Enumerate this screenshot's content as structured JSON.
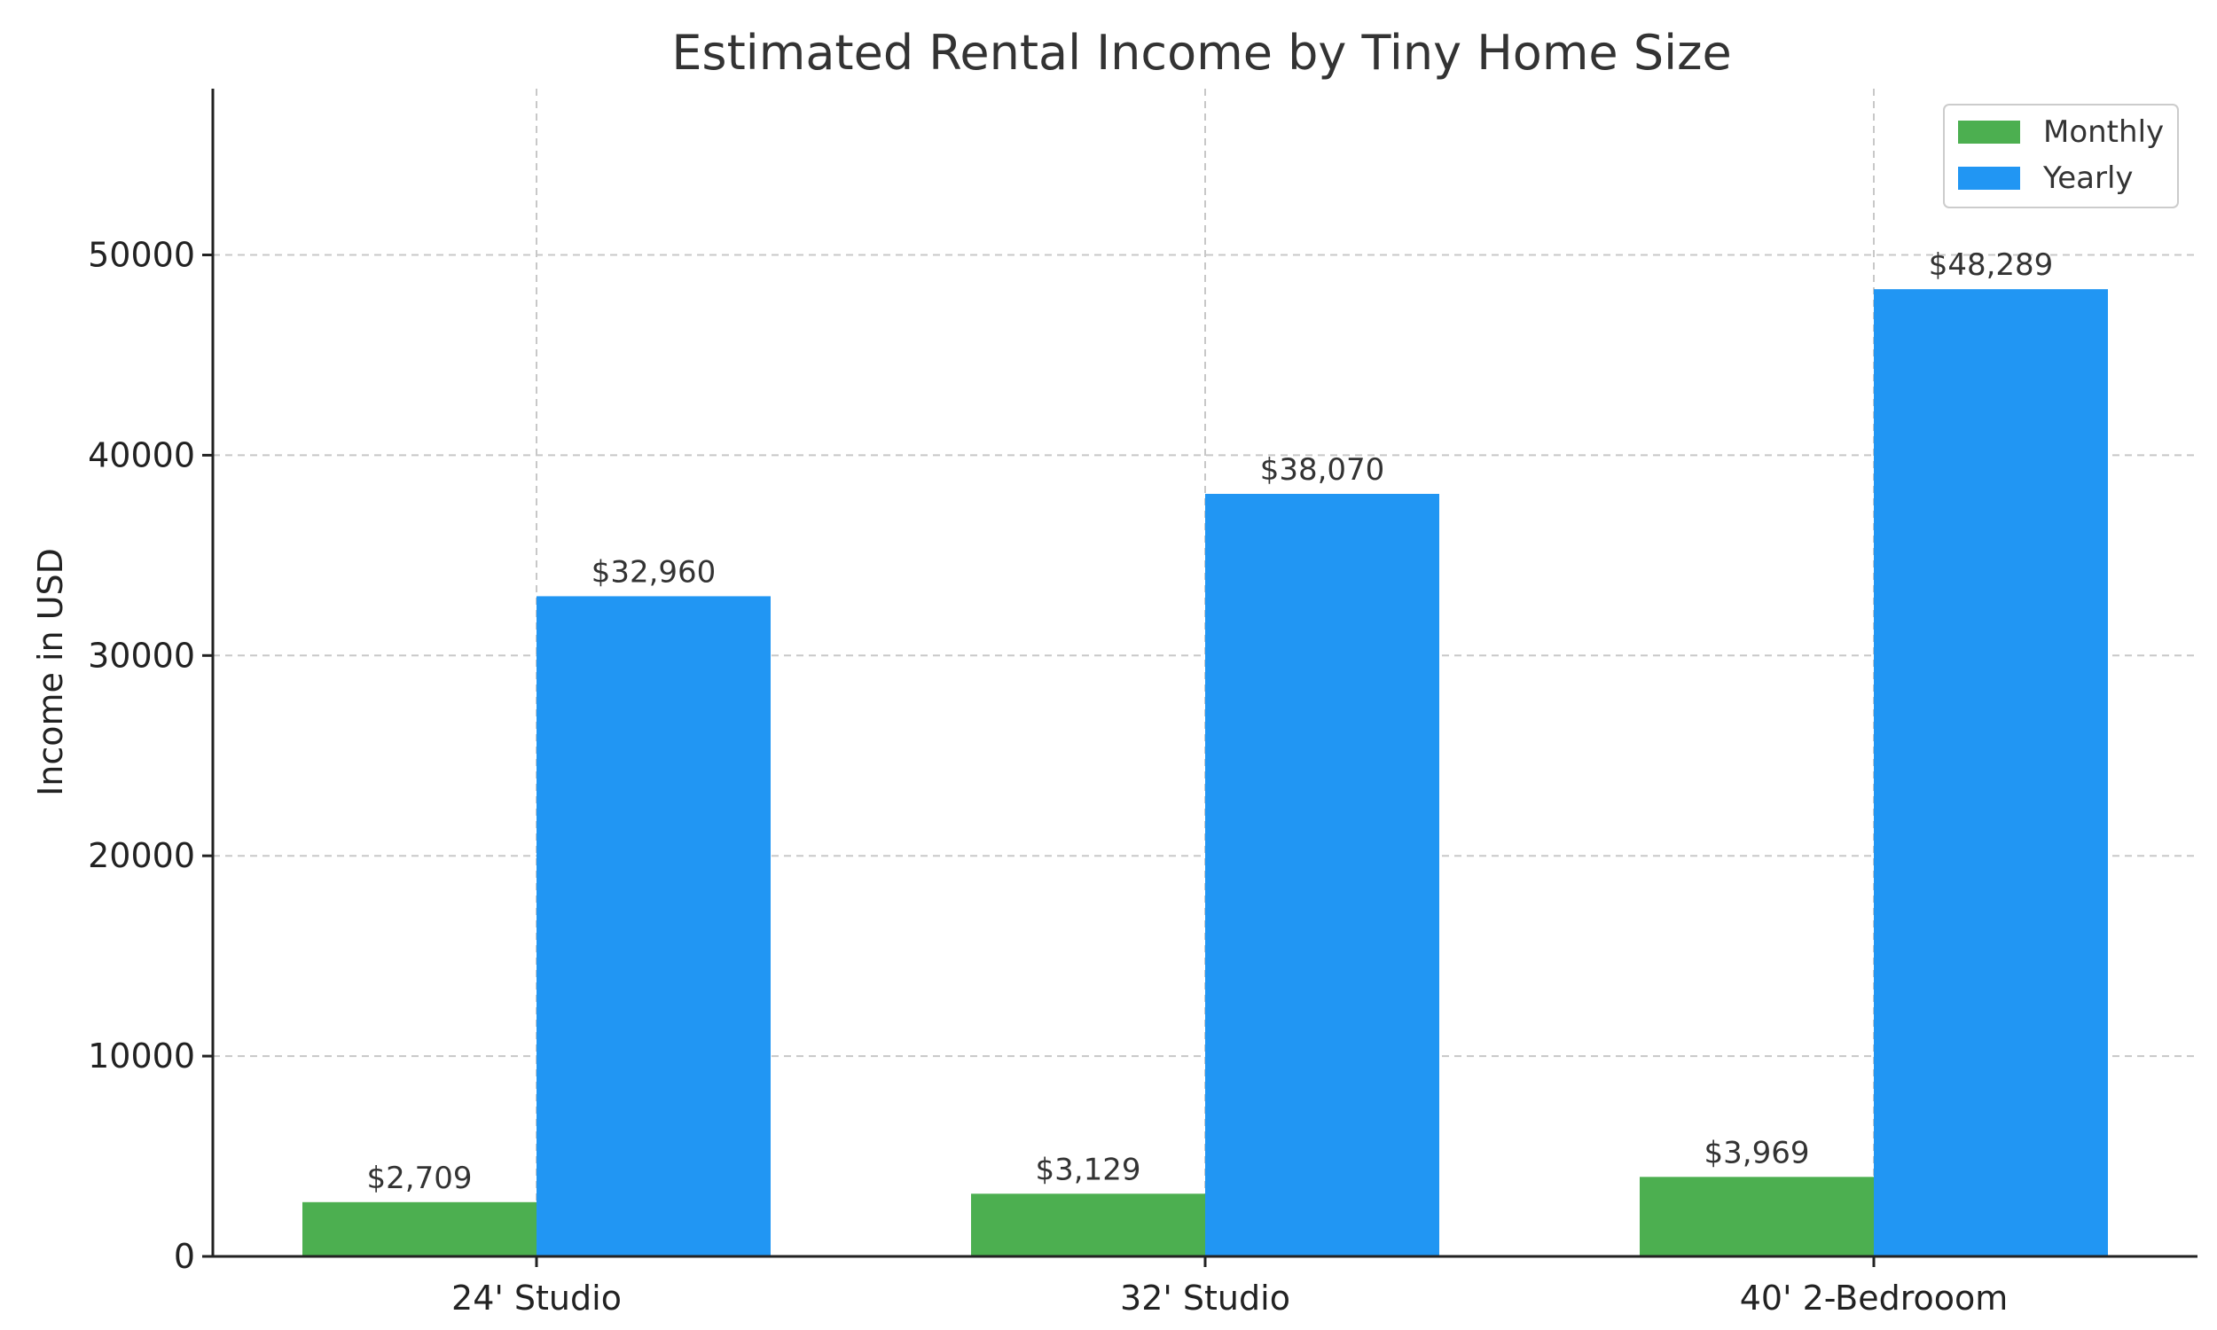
{
  "chart_data": {
    "type": "bar",
    "title": "Estimated Rental Income by Tiny Home Size",
    "xlabel": "",
    "ylabel": "Income in USD",
    "categories": [
      "24' Studio",
      "32' Studio",
      "40' 2-Bedrooom"
    ],
    "series": [
      {
        "name": "Monthly",
        "color": "#4caf50",
        "values": [
          2709,
          3129,
          3969
        ],
        "labels": [
          "$2,709",
          "$3,129",
          "$3,969"
        ]
      },
      {
        "name": "Yearly",
        "color": "#2196f3",
        "values": [
          32960,
          38070,
          48289
        ],
        "labels": [
          "$32,960",
          "$38,070",
          "$48,289"
        ]
      }
    ],
    "ylim": [
      0,
      58300
    ],
    "yticks": [
      0,
      10000,
      20000,
      30000,
      40000,
      50000
    ],
    "ytick_labels": [
      "0",
      "10000",
      "20000",
      "30000",
      "40000",
      "50000"
    ],
    "grid": true,
    "legend_position": "top-right"
  }
}
